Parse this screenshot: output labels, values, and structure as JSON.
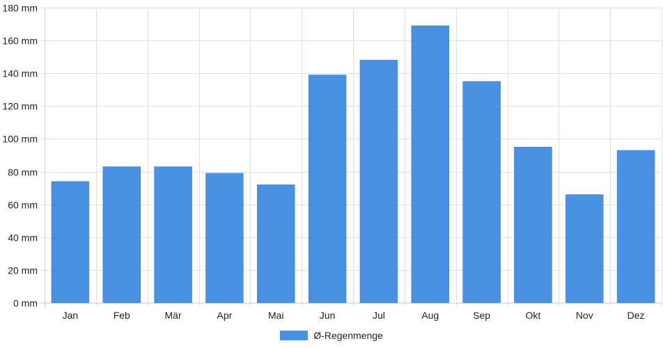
{
  "chart_data": {
    "type": "bar",
    "categories": [
      "Jan",
      "Feb",
      "Mär",
      "Apr",
      "Mai",
      "Jun",
      "Jul",
      "Aug",
      "Sep",
      "Okt",
      "Nov",
      "Dez"
    ],
    "series": [
      {
        "name": "Ø-Regenmenge",
        "values": [
          74,
          83,
          83,
          79,
          72,
          139,
          148,
          169,
          135,
          95,
          66,
          93
        ]
      }
    ],
    "ylim": [
      0,
      180
    ],
    "yticks": [
      0,
      20,
      40,
      60,
      80,
      100,
      120,
      140,
      160,
      180
    ],
    "ytick_labels": [
      "0 mm",
      "20 mm",
      "40 mm",
      "60 mm",
      "80 mm",
      "100 mm",
      "120 mm",
      "140 mm",
      "160 mm",
      "180 mm"
    ],
    "grid": true,
    "legend_position": "bottom",
    "colors": {
      "bar": "#4a90e2",
      "grid": "#e0e0e0",
      "axis": "#cccccc"
    }
  }
}
